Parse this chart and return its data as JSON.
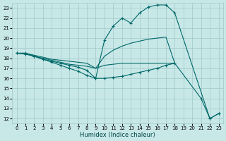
{
  "xlabel": "Humidex (Indice chaleur)",
  "bg_color": "#c8e8e8",
  "grid_color": "#a0c8c8",
  "line_color": "#006868",
  "xlim": [
    -0.5,
    23.5
  ],
  "ylim": [
    11.5,
    23.5
  ],
  "xticks": [
    0,
    1,
    2,
    3,
    4,
    5,
    6,
    7,
    8,
    9,
    10,
    11,
    12,
    13,
    14,
    15,
    16,
    17,
    18,
    19,
    20,
    21,
    22,
    23
  ],
  "yticks": [
    12,
    13,
    14,
    15,
    16,
    17,
    18,
    19,
    20,
    21,
    22,
    23
  ],
  "lines": [
    {
      "x": [
        0,
        1,
        2,
        3,
        4,
        5,
        6,
        7,
        8,
        9,
        10,
        11,
        12,
        13,
        14,
        15,
        16,
        17,
        18,
        22,
        23
      ],
      "y": [
        18.5,
        18.5,
        18.2,
        17.9,
        17.7,
        17.5,
        17.3,
        17.1,
        16.8,
        16.0,
        19.8,
        21.2,
        22.0,
        21.5,
        22.5,
        23.1,
        23.3,
        23.3,
        22.5,
        12.0,
        12.5
      ],
      "marker": "+"
    },
    {
      "x": [
        0,
        1,
        2,
        3,
        4,
        5,
        6,
        7,
        8,
        9,
        10,
        11,
        12,
        13,
        14,
        15,
        16,
        17,
        18
      ],
      "y": [
        18.5,
        18.5,
        18.3,
        18.1,
        17.9,
        17.8,
        17.7,
        17.6,
        17.5,
        17.0,
        18.2,
        18.8,
        19.2,
        19.5,
        19.7,
        19.9,
        20.0,
        20.1,
        17.5
      ],
      "marker": null
    },
    {
      "x": [
        0,
        1,
        2,
        3,
        4,
        5,
        6,
        7,
        8,
        9,
        10,
        11,
        12,
        13,
        14,
        15,
        16,
        17,
        18
      ],
      "y": [
        18.5,
        18.5,
        18.2,
        18.0,
        17.8,
        17.6,
        17.4,
        17.3,
        17.2,
        17.0,
        17.3,
        17.4,
        17.5,
        17.5,
        17.5,
        17.5,
        17.5,
        17.5,
        17.5
      ],
      "marker": null
    },
    {
      "x": [
        0,
        1,
        2,
        3,
        4,
        5,
        6,
        7,
        8,
        9,
        10,
        11,
        12,
        13,
        14,
        15,
        16,
        17,
        18,
        21,
        22,
        23
      ],
      "y": [
        18.5,
        18.4,
        18.2,
        17.9,
        17.6,
        17.3,
        17.0,
        16.7,
        16.3,
        16.0,
        16.0,
        16.1,
        16.2,
        16.4,
        16.6,
        16.8,
        17.0,
        17.3,
        17.5,
        14.0,
        12.0,
        12.5
      ],
      "marker": "+"
    }
  ]
}
